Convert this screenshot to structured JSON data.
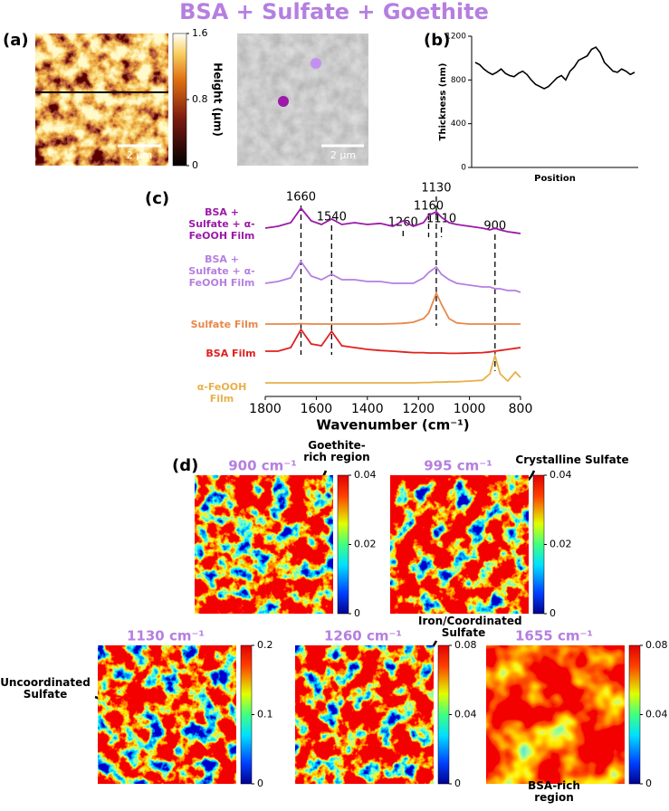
{
  "title": "BSA + Sulfate + Goethite",
  "panel_labels": [
    "(a)",
    "(b)",
    "(c)",
    "(d)"
  ],
  "afm": {
    "colorbar_label": "Height (µm)",
    "colorbar_ticks": [
      0,
      0.8,
      1.6
    ],
    "scale_bars": [
      "2 µm",
      "2 µm"
    ]
  },
  "chart_data": [
    {
      "type": "line",
      "xlabel": "Position",
      "ylabel": "Thickness (nm)",
      "color": "#000000",
      "ylim": [
        0,
        1200
      ],
      "yticks": [
        0,
        400,
        800,
        1200
      ],
      "values": [
        960,
        940,
        900,
        870,
        850,
        870,
        900,
        860,
        840,
        830,
        860,
        880,
        850,
        800,
        760,
        740,
        720,
        740,
        780,
        820,
        840,
        800,
        880,
        920,
        980,
        1000,
        1020,
        1080,
        1100,
        1050,
        960,
        920,
        880,
        870,
        900,
        880,
        850,
        870
      ]
    },
    {
      "type": "line",
      "xlabel": "Wavenumber (cm⁻¹)",
      "xlim": [
        1800,
        800
      ],
      "xticks": [
        1800,
        1600,
        1400,
        1200,
        1000,
        800
      ],
      "x": [
        1800,
        1750,
        1700,
        1660,
        1620,
        1580,
        1540,
        1500,
        1450,
        1400,
        1350,
        1300,
        1260,
        1220,
        1180,
        1160,
        1130,
        1110,
        1080,
        1050,
        1000,
        950,
        920,
        900,
        880,
        850,
        820,
        800
      ],
      "annotations": [
        1660,
        1540,
        1260,
        1160,
        1130,
        1110,
        900
      ],
      "series": [
        {
          "name": "BSA + Sulfate + α-FeOOH Film",
          "color": "#9b1aa8",
          "values": [
            0.25,
            0.3,
            0.4,
            0.8,
            0.45,
            0.35,
            0.5,
            0.35,
            0.4,
            0.35,
            0.38,
            0.3,
            0.45,
            0.3,
            0.4,
            0.6,
            0.7,
            0.55,
            0.4,
            0.35,
            0.3,
            0.25,
            0.2,
            0.25,
            0.2,
            0.15,
            0.12,
            0.1
          ]
        },
        {
          "name": "BSA + Sulfate + α-FeOOH Film",
          "color": "#b57fe0",
          "values": [
            0.3,
            0.35,
            0.45,
            0.9,
            0.5,
            0.4,
            0.55,
            0.4,
            0.4,
            0.35,
            0.35,
            0.3,
            0.3,
            0.3,
            0.45,
            0.6,
            0.75,
            0.55,
            0.4,
            0.3,
            0.25,
            0.2,
            0.2,
            0.15,
            0.15,
            0.1,
            0.1,
            0.05
          ]
        },
        {
          "name": "Sulfate Film",
          "color": "#e8874a",
          "values": [
            0.05,
            0.05,
            0.05,
            0.06,
            0.05,
            0.05,
            0.05,
            0.05,
            0.05,
            0.05,
            0.05,
            0.06,
            0.07,
            0.1,
            0.2,
            0.35,
            0.9,
            0.6,
            0.2,
            0.08,
            0.05,
            0.05,
            0.05,
            0.05,
            0.05,
            0.05,
            0.05,
            0.05
          ]
        },
        {
          "name": "BSA Film",
          "color": "#e02020",
          "values": [
            0.1,
            0.1,
            0.2,
            0.7,
            0.3,
            0.25,
            0.65,
            0.25,
            0.2,
            0.15,
            0.12,
            0.1,
            0.08,
            0.06,
            0.06,
            0.05,
            0.05,
            0.05,
            0.04,
            0.04,
            0.05,
            0.06,
            0.08,
            0.1,
            0.12,
            0.15,
            0.18,
            0.2
          ]
        },
        {
          "name": "α-FeOOH Film",
          "color": "#e8b04a",
          "values": [
            0.05,
            0.05,
            0.05,
            0.05,
            0.05,
            0.05,
            0.05,
            0.05,
            0.05,
            0.05,
            0.05,
            0.05,
            0.05,
            0.05,
            0.06,
            0.06,
            0.07,
            0.07,
            0.08,
            0.08,
            0.1,
            0.12,
            0.3,
            0.8,
            0.3,
            0.1,
            0.35,
            0.2
          ]
        }
      ]
    }
  ],
  "maps": [
    {
      "title": "900 cm⁻¹",
      "colorbar_ticks": [
        0,
        0.02,
        0.04
      ]
    },
    {
      "title": "995 cm⁻¹",
      "colorbar_ticks": [
        0,
        0.02,
        0.04
      ]
    },
    {
      "title": "1130 cm⁻¹",
      "colorbar_ticks": [
        0,
        0.1,
        0.2
      ]
    },
    {
      "title": "1260 cm⁻¹",
      "colorbar_ticks": [
        0,
        0.04,
        0.08
      ]
    },
    {
      "title": "1655 cm⁻¹",
      "colorbar_ticks": [
        0,
        0.04,
        0.08
      ]
    }
  ],
  "annotations": [
    "Goethite-rich region",
    "Crystalline Sulfate",
    "Iron/Coordinated Sulfate",
    "Uncoordinated Sulfate",
    "BSA-rich region"
  ]
}
